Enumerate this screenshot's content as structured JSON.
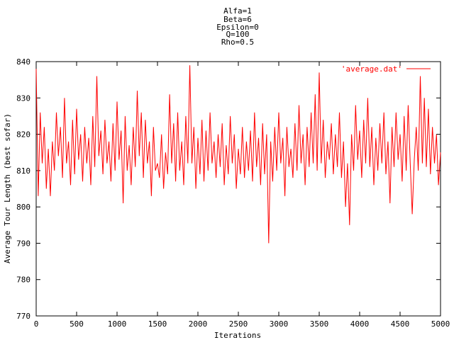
{
  "chart_data": {
    "type": "line",
    "title_lines": [
      "Alfa=1",
      "Beta=6",
      "Epsilon=0",
      "Q=100",
      "Rho=0.5"
    ],
    "xlabel": "Iterations",
    "ylabel": "Average Tour Length (best sofar)",
    "xlim": [
      0,
      5000
    ],
    "ylim": [
      770,
      840
    ],
    "x_ticks": [
      0,
      500,
      1000,
      1500,
      2000,
      2500,
      3000,
      3500,
      4000,
      4500,
      5000
    ],
    "y_ticks": [
      770,
      780,
      790,
      800,
      810,
      820,
      830,
      840
    ],
    "legend_position": "top-right",
    "grid": false,
    "series": [
      {
        "name": "'average.dat'",
        "color": "#ff0000",
        "x": [
          0,
          25,
          50,
          75,
          100,
          125,
          150,
          175,
          200,
          225,
          250,
          275,
          300,
          325,
          350,
          375,
          400,
          425,
          450,
          475,
          500,
          525,
          550,
          575,
          600,
          625,
          650,
          675,
          700,
          725,
          750,
          775,
          800,
          825,
          850,
          875,
          900,
          925,
          950,
          975,
          1000,
          1025,
          1050,
          1075,
          1100,
          1125,
          1150,
          1175,
          1200,
          1225,
          1250,
          1275,
          1300,
          1325,
          1350,
          1375,
          1400,
          1425,
          1450,
          1475,
          1500,
          1525,
          1550,
          1575,
          1600,
          1625,
          1650,
          1675,
          1700,
          1725,
          1750,
          1775,
          1800,
          1825,
          1850,
          1875,
          1900,
          1925,
          1950,
          1975,
          2000,
          2025,
          2050,
          2075,
          2100,
          2125,
          2150,
          2175,
          2200,
          2225,
          2250,
          2275,
          2300,
          2325,
          2350,
          2375,
          2400,
          2425,
          2450,
          2475,
          2500,
          2525,
          2550,
          2575,
          2600,
          2625,
          2650,
          2675,
          2700,
          2725,
          2750,
          2775,
          2800,
          2825,
          2850,
          2875,
          2900,
          2925,
          2950,
          2975,
          3000,
          3025,
          3050,
          3075,
          3100,
          3125,
          3150,
          3175,
          3200,
          3225,
          3250,
          3275,
          3300,
          3325,
          3350,
          3375,
          3400,
          3425,
          3450,
          3475,
          3500,
          3525,
          3550,
          3575,
          3600,
          3625,
          3650,
          3675,
          3700,
          3725,
          3750,
          3775,
          3800,
          3825,
          3850,
          3875,
          3900,
          3925,
          3950,
          3975,
          4000,
          4025,
          4050,
          4075,
          4100,
          4125,
          4150,
          4175,
          4200,
          4225,
          4250,
          4275,
          4300,
          4325,
          4350,
          4375,
          4400,
          4425,
          4450,
          4475,
          4500,
          4525,
          4550,
          4575,
          4600,
          4625,
          4650,
          4675,
          4700,
          4725,
          4750,
          4775,
          4800,
          4825,
          4850,
          4875,
          4900,
          4925,
          4950,
          4975,
          5000
        ],
        "values": [
          838,
          803,
          826,
          812,
          822,
          805,
          816,
          803,
          818,
          810,
          826,
          814,
          822,
          808,
          830,
          812,
          818,
          806,
          824,
          809,
          827,
          813,
          820,
          807,
          822,
          812,
          819,
          806,
          825,
          811,
          836,
          814,
          821,
          809,
          824,
          812,
          818,
          807,
          823,
          810,
          829,
          813,
          821,
          801,
          825,
          810,
          817,
          806,
          822,
          811,
          832,
          814,
          826,
          808,
          824,
          812,
          818,
          803,
          822,
          810,
          812,
          808,
          820,
          805,
          815,
          809,
          831,
          812,
          823,
          807,
          826,
          810,
          818,
          806,
          825,
          812,
          839,
          812,
          822,
          805,
          819,
          809,
          824,
          807,
          821,
          810,
          826,
          812,
          818,
          808,
          820,
          811,
          823,
          806,
          817,
          809,
          825,
          812,
          820,
          805,
          816,
          809,
          822,
          808,
          818,
          810,
          821,
          807,
          826,
          811,
          819,
          806,
          823,
          809,
          820,
          790,
          818,
          807,
          822,
          810,
          826,
          812,
          819,
          803,
          822,
          811,
          816,
          808,
          823,
          810,
          828,
          812,
          820,
          806,
          822,
          811,
          826,
          812,
          831,
          810,
          837,
          812,
          824,
          808,
          818,
          813,
          823,
          809,
          820,
          811,
          826,
          808,
          818,
          800,
          812,
          795,
          820,
          810,
          828,
          813,
          821,
          808,
          824,
          812,
          830,
          811,
          822,
          806,
          819,
          810,
          823,
          812,
          826,
          809,
          818,
          801,
          822,
          811,
          826,
          813,
          820,
          807,
          825,
          810,
          828,
          812,
          798,
          813,
          822,
          810,
          836,
          812,
          830,
          811,
          827,
          809,
          822,
          812,
          820,
          806,
          815
        ]
      }
    ]
  }
}
